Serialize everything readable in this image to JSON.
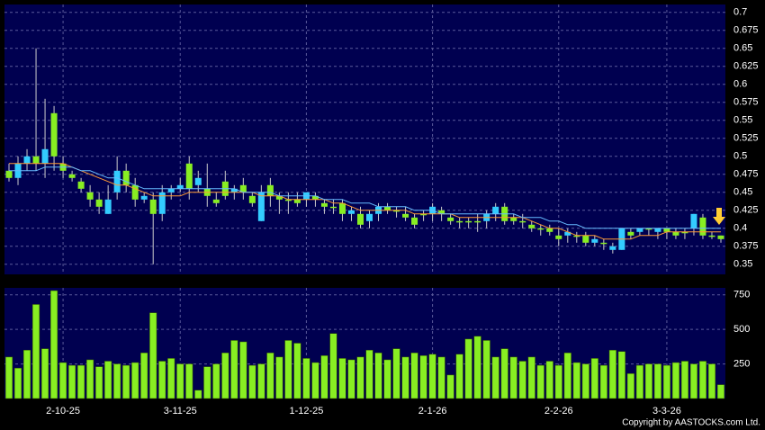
{
  "chart_data": [
    {
      "type": "candlestick",
      "ylim": [
        0.336,
        0.711
      ],
      "yticks": [
        0.35,
        0.375,
        0.4,
        0.425,
        0.45,
        0.475,
        0.5,
        0.525,
        0.55,
        0.575,
        0.6,
        0.625,
        0.65,
        0.675,
        0.7
      ],
      "grid": true,
      "up_color": "#33ccff",
      "down_color": "#88ee22",
      "wick_color": "#cccccc",
      "open": [
        0.48,
        0.47,
        0.49,
        0.5,
        0.49,
        0.56,
        0.49,
        0.475,
        0.465,
        0.45,
        0.44,
        0.42,
        0.45,
        0.48,
        0.46,
        0.44,
        0.44,
        0.42,
        0.45,
        0.455,
        0.49,
        0.46,
        0.455,
        0.44,
        0.465,
        0.45,
        0.46,
        0.445,
        0.41,
        0.46,
        0.445,
        0.44,
        0.44,
        0.44,
        0.445,
        0.435,
        0.43,
        0.435,
        0.42,
        0.42,
        0.41,
        0.42,
        0.43,
        0.425,
        0.42,
        0.415,
        0.42,
        0.42,
        0.425,
        0.415,
        0.41,
        0.41,
        0.41,
        0.41,
        0.42,
        0.43,
        0.415,
        0.41,
        0.405,
        0.4,
        0.4,
        0.39,
        0.39,
        0.39,
        0.39,
        0.38,
        0.38,
        0.37,
        0.37,
        0.395,
        0.395,
        0.4,
        0.395,
        0.4,
        0.395,
        0.395,
        0.4,
        0.415,
        0.39,
        0.39
      ],
      "high": [
        0.49,
        0.5,
        0.51,
        0.65,
        0.58,
        0.57,
        0.5,
        0.48,
        0.47,
        0.46,
        0.45,
        0.46,
        0.5,
        0.49,
        0.47,
        0.45,
        0.45,
        0.46,
        0.46,
        0.47,
        0.5,
        0.48,
        0.49,
        0.45,
        0.48,
        0.46,
        0.47,
        0.45,
        0.46,
        0.47,
        0.45,
        0.45,
        0.45,
        0.45,
        0.45,
        0.44,
        0.44,
        0.44,
        0.43,
        0.43,
        0.425,
        0.435,
        0.435,
        0.43,
        0.43,
        0.42,
        0.425,
        0.435,
        0.43,
        0.42,
        0.415,
        0.415,
        0.42,
        0.425,
        0.435,
        0.435,
        0.42,
        0.42,
        0.41,
        0.405,
        0.405,
        0.4,
        0.4,
        0.395,
        0.395,
        0.39,
        0.385,
        0.38,
        0.4,
        0.4,
        0.4,
        0.4,
        0.4,
        0.4,
        0.4,
        0.4,
        0.42,
        0.42,
        0.395,
        0.39
      ],
      "low": [
        0.465,
        0.46,
        0.48,
        0.48,
        0.47,
        0.48,
        0.47,
        0.465,
        0.45,
        0.43,
        0.42,
        0.42,
        0.44,
        0.45,
        0.43,
        0.435,
        0.35,
        0.41,
        0.44,
        0.45,
        0.44,
        0.45,
        0.43,
        0.43,
        0.44,
        0.44,
        0.44,
        0.43,
        0.41,
        0.43,
        0.42,
        0.42,
        0.43,
        0.43,
        0.43,
        0.42,
        0.42,
        0.41,
        0.41,
        0.4,
        0.4,
        0.41,
        0.42,
        0.415,
        0.41,
        0.4,
        0.41,
        0.41,
        0.41,
        0.405,
        0.4,
        0.4,
        0.395,
        0.4,
        0.41,
        0.405,
        0.405,
        0.4,
        0.395,
        0.39,
        0.39,
        0.375,
        0.38,
        0.38,
        0.375,
        0.375,
        0.37,
        0.365,
        0.37,
        0.385,
        0.39,
        0.39,
        0.385,
        0.385,
        0.385,
        0.385,
        0.39,
        0.385,
        0.385,
        0.38
      ],
      "close": [
        0.47,
        0.49,
        0.5,
        0.49,
        0.51,
        0.5,
        0.48,
        0.47,
        0.455,
        0.44,
        0.43,
        0.44,
        0.48,
        0.46,
        0.44,
        0.445,
        0.42,
        0.45,
        0.455,
        0.46,
        0.455,
        0.47,
        0.445,
        0.435,
        0.445,
        0.455,
        0.45,
        0.435,
        0.45,
        0.445,
        0.44,
        0.44,
        0.435,
        0.45,
        0.44,
        0.43,
        0.43,
        0.42,
        0.425,
        0.405,
        0.42,
        0.43,
        0.425,
        0.425,
        0.415,
        0.405,
        0.42,
        0.43,
        0.42,
        0.41,
        0.41,
        0.41,
        0.41,
        0.42,
        0.43,
        0.41,
        0.41,
        0.41,
        0.4,
        0.4,
        0.395,
        0.385,
        0.395,
        0.39,
        0.38,
        0.385,
        0.38,
        0.375,
        0.4,
        0.39,
        0.4,
        0.4,
        0.4,
        0.395,
        0.39,
        0.395,
        0.42,
        0.39,
        0.39,
        0.385
      ],
      "lines": [
        {
          "color": "#ff9933",
          "values": [
            0.49,
            0.49,
            0.49,
            0.49,
            0.49,
            0.49,
            0.49,
            0.485,
            0.48,
            0.475,
            0.47,
            0.465,
            0.46,
            0.46,
            0.455,
            0.45,
            0.445,
            0.445,
            0.445,
            0.445,
            0.45,
            0.45,
            0.45,
            0.45,
            0.45,
            0.45,
            0.45,
            0.45,
            0.445,
            0.445,
            0.445,
            0.44,
            0.44,
            0.44,
            0.44,
            0.44,
            0.435,
            0.435,
            0.43,
            0.425,
            0.425,
            0.425,
            0.425,
            0.425,
            0.425,
            0.42,
            0.42,
            0.42,
            0.42,
            0.42,
            0.415,
            0.415,
            0.415,
            0.415,
            0.415,
            0.415,
            0.415,
            0.415,
            0.41,
            0.405,
            0.4,
            0.4,
            0.395,
            0.39,
            0.39,
            0.39,
            0.385,
            0.385,
            0.385,
            0.385,
            0.39,
            0.39,
            0.39,
            0.395,
            0.395,
            0.395,
            0.395,
            0.395,
            0.395,
            0.395
          ]
        },
        {
          "color": "#66bbff",
          "values": [
            0.48,
            0.48,
            0.48,
            0.48,
            0.485,
            0.485,
            0.485,
            0.485,
            0.48,
            0.48,
            0.475,
            0.47,
            0.47,
            0.465,
            0.46,
            0.455,
            0.455,
            0.455,
            0.455,
            0.455,
            0.455,
            0.455,
            0.455,
            0.455,
            0.455,
            0.455,
            0.45,
            0.45,
            0.45,
            0.45,
            0.445,
            0.445,
            0.445,
            0.445,
            0.445,
            0.44,
            0.44,
            0.44,
            0.435,
            0.435,
            0.435,
            0.43,
            0.43,
            0.43,
            0.43,
            0.425,
            0.425,
            0.425,
            0.42,
            0.42,
            0.42,
            0.42,
            0.42,
            0.42,
            0.42,
            0.42,
            0.42,
            0.415,
            0.415,
            0.415,
            0.41,
            0.41,
            0.405,
            0.405,
            0.4,
            0.4,
            0.4,
            0.4,
            0.4,
            0.4,
            0.4,
            0.4,
            0.4,
            0.4,
            0.4,
            0.4,
            0.4,
            0.4,
            0.4,
            0.4
          ]
        }
      ]
    },
    {
      "type": "bar",
      "ylim": [
        0,
        800
      ],
      "yticks": [
        250,
        500,
        750
      ],
      "grid": true,
      "color": "#88ee22",
      "categories": [
        null,
        null,
        null,
        null,
        null,
        null,
        "2-10-25",
        null,
        null,
        null,
        null,
        null,
        null,
        null,
        null,
        null,
        null,
        null,
        null,
        "3-11-25",
        null,
        null,
        null,
        null,
        null,
        null,
        null,
        null,
        null,
        null,
        null,
        null,
        null,
        "1-12-25",
        null,
        null,
        null,
        null,
        null,
        null,
        null,
        null,
        null,
        null,
        null,
        null,
        null,
        "2-1-26",
        null,
        null,
        null,
        null,
        null,
        null,
        null,
        null,
        null,
        null,
        null,
        null,
        null,
        "2-2-26",
        null,
        null,
        null,
        null,
        null,
        null,
        null,
        null,
        null,
        null,
        null,
        "3-3-26",
        null,
        null,
        null,
        null,
        null,
        null
      ],
      "values": [
        300,
        220,
        350,
        680,
        360,
        780,
        260,
        240,
        240,
        280,
        230,
        270,
        250,
        240,
        260,
        330,
        620,
        270,
        290,
        250,
        250,
        60,
        230,
        250,
        330,
        420,
        410,
        240,
        250,
        330,
        300,
        420,
        400,
        290,
        260,
        310,
        470,
        290,
        280,
        300,
        350,
        330,
        280,
        360,
        300,
        330,
        310,
        320,
        300,
        170,
        320,
        430,
        450,
        420,
        300,
        360,
        300,
        270,
        300,
        240,
        270,
        240,
        330,
        260,
        250,
        290,
        240,
        350,
        340,
        180,
        240,
        250,
        250,
        240,
        260,
        270,
        250,
        270,
        250,
        100
      ],
      "annotations": [
        "Copyright by AASTOCKS.com Ltd."
      ]
    }
  ]
}
